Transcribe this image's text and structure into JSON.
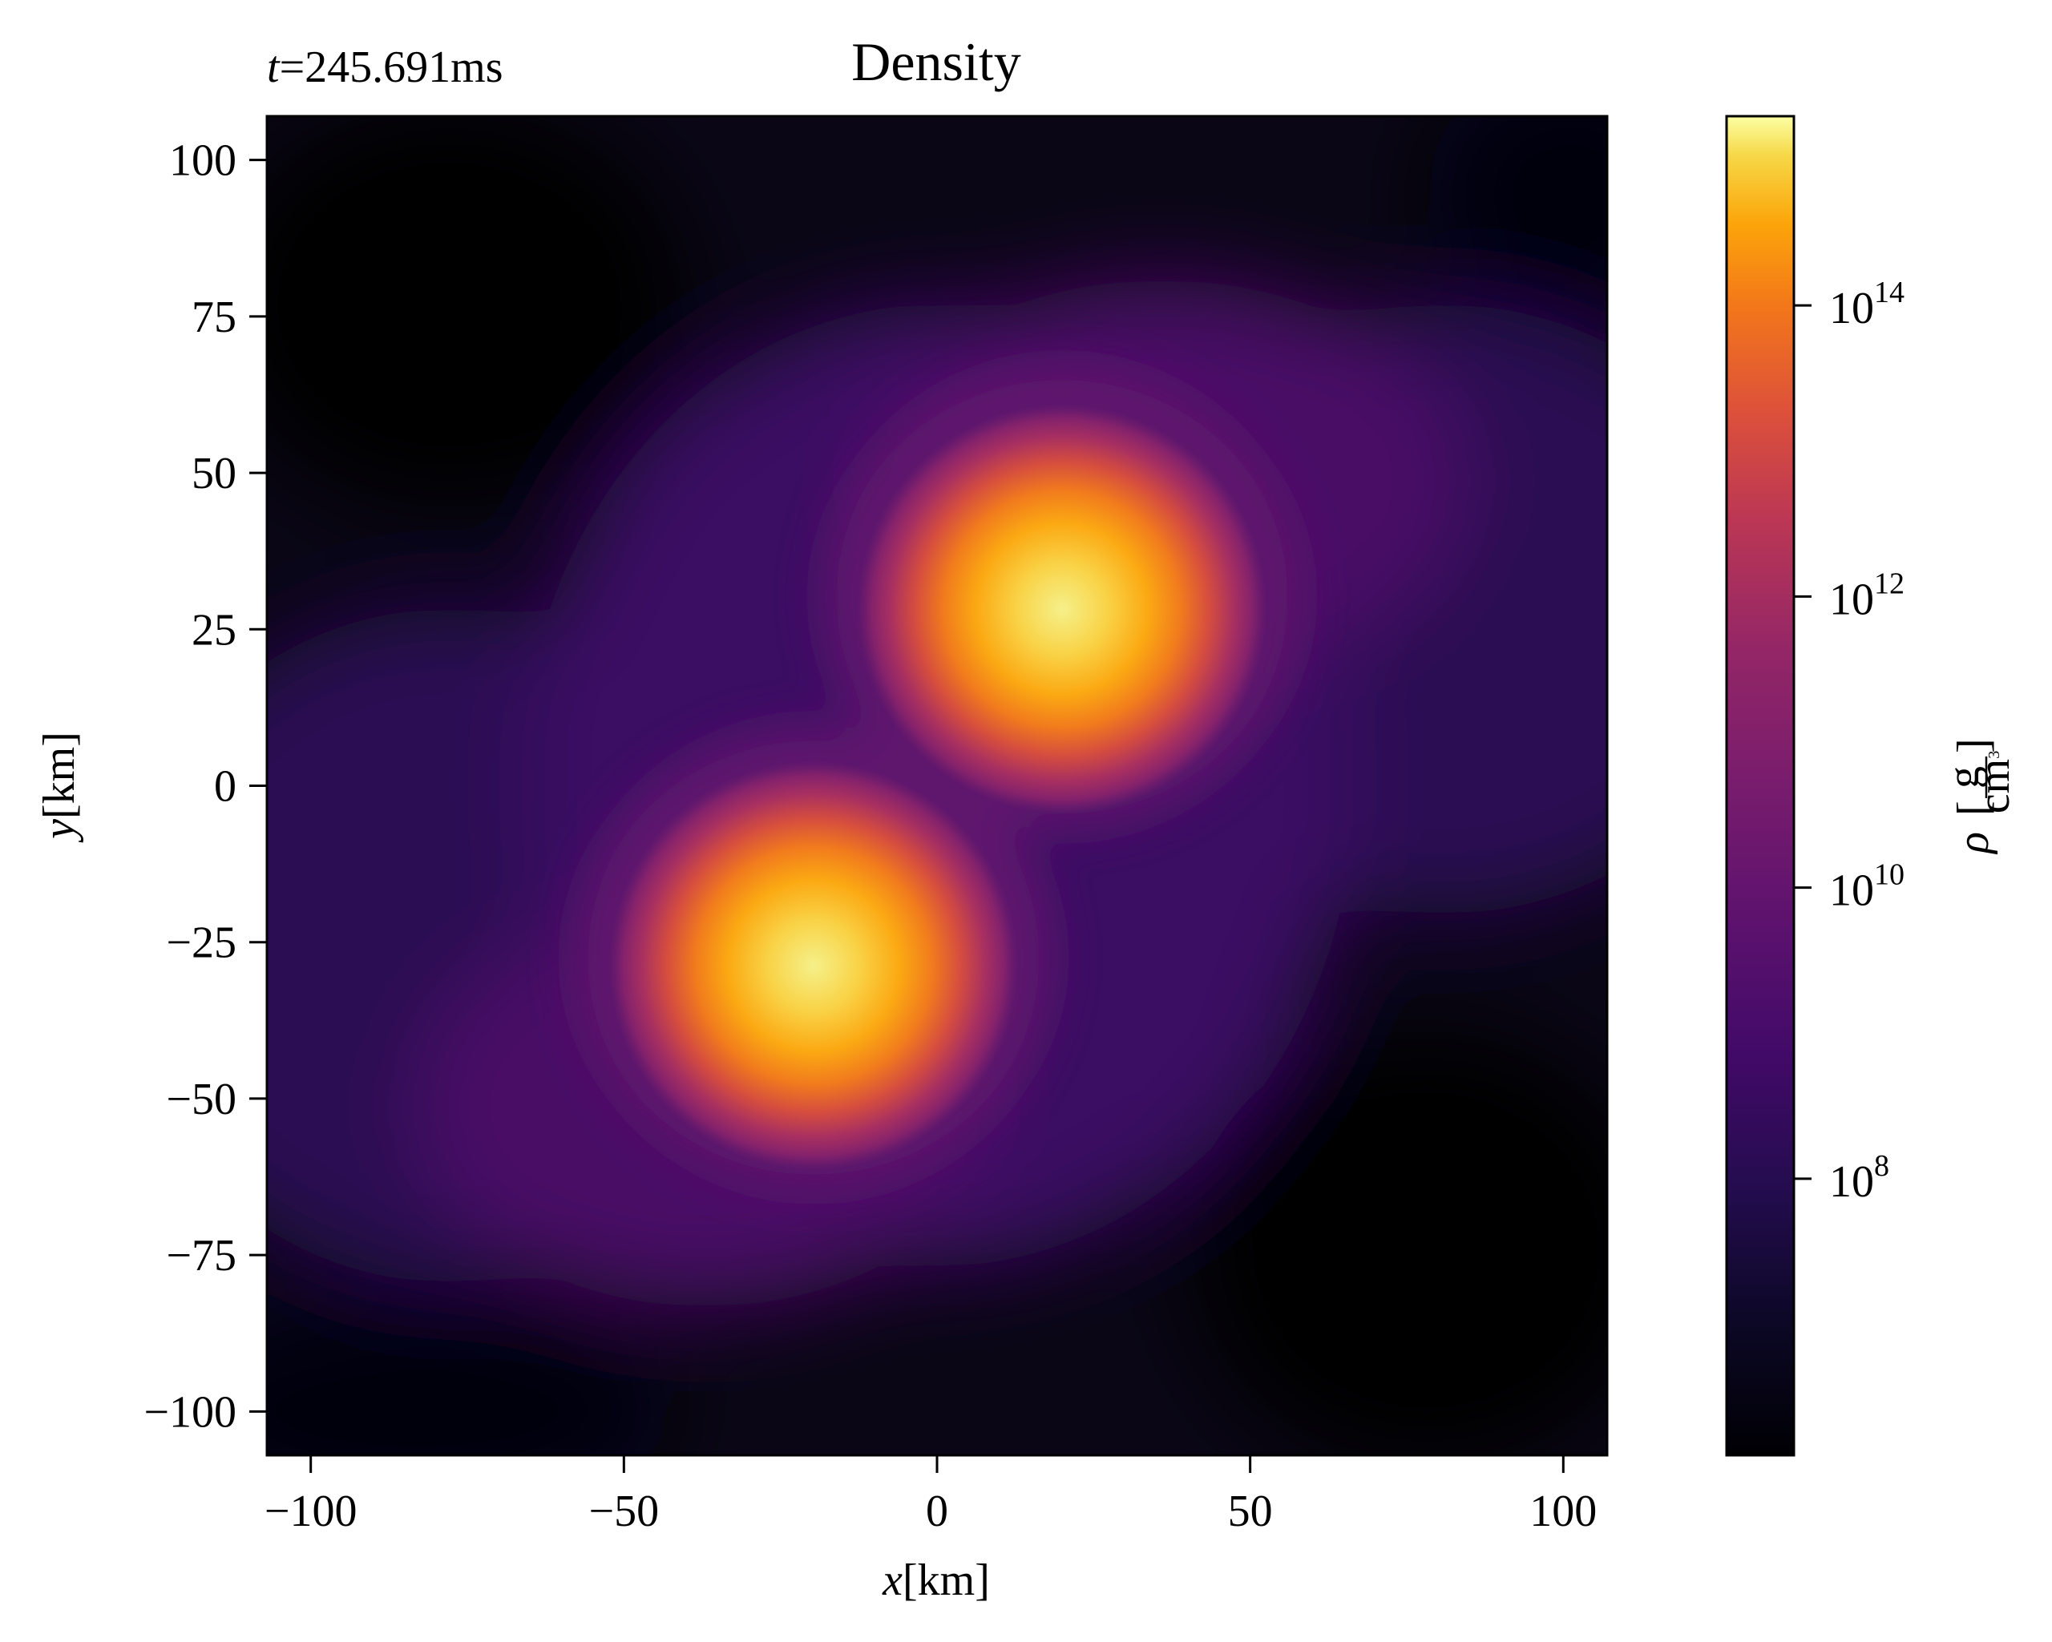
{
  "chart_data": {
    "type": "heatmap",
    "title": "Density",
    "annotation": {
      "var": "t",
      "eq": "=",
      "value": "245.691",
      "unit": "ms"
    },
    "xlabel": {
      "var": "x",
      "unit": "[km]"
    },
    "ylabel": {
      "var": "y",
      "unit": "[km]"
    },
    "xlim": [
      -107,
      107
    ],
    "ylim": [
      -107,
      107
    ],
    "xticks": [
      -100,
      -50,
      0,
      50,
      100
    ],
    "yticks": [
      -100,
      -75,
      -50,
      -25,
      0,
      25,
      50,
      75,
      100
    ],
    "xtick_labels": [
      "−100",
      "−50",
      "0",
      "50",
      "100"
    ],
    "ytick_labels": [
      "−100",
      "−75",
      "−50",
      "−25",
      "0",
      "25",
      "50",
      "75",
      "100"
    ],
    "colorbar": {
      "label_var": "ρ",
      "label_unit_num": "g",
      "label_unit_den": "cm",
      "label_unit_den_exp": "3",
      "scale": "log",
      "log10_range": [
        6.1,
        15.3
      ],
      "ticks": [
        {
          "log10": 8,
          "base": "10",
          "exp": "8"
        },
        {
          "log10": 10,
          "base": "10",
          "exp": "10"
        },
        {
          "log10": 12,
          "base": "10",
          "exp": "12"
        },
        {
          "log10": 14,
          "base": "10",
          "exp": "14"
        }
      ],
      "colormap": "inferno"
    },
    "features": [
      {
        "name": "core-upper",
        "x": 20,
        "y": 27,
        "peak_log10": 15.1
      },
      {
        "name": "core-lower",
        "x": -20,
        "y": -27,
        "peak_log10": 15.1
      }
    ],
    "grid": false
  }
}
